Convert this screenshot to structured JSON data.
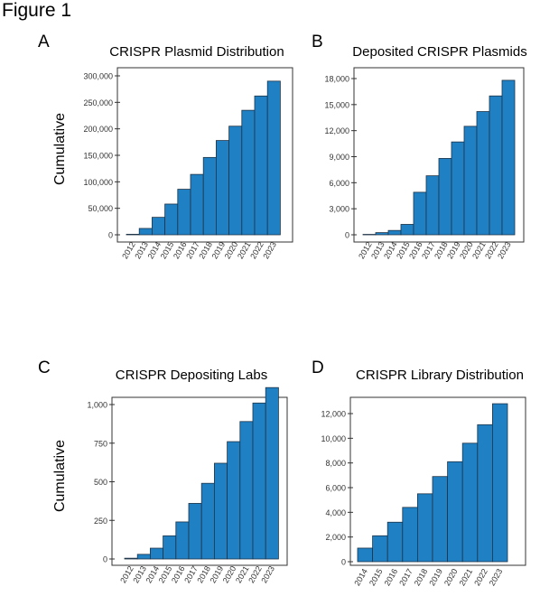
{
  "figure_title": "Figure 1",
  "panels": {
    "A": {
      "letter": "A",
      "title": "CRISPR Plasmid Distribution",
      "ylabel": "Cumulative"
    },
    "B": {
      "letter": "B",
      "title": "Deposited CRISPR Plasmids",
      "ylabel": ""
    },
    "C": {
      "letter": "C",
      "title": "CRISPR Depositing Labs",
      "ylabel": "Cumulative"
    },
    "D": {
      "letter": "D",
      "title": "CRISPR Library Distribution",
      "ylabel": ""
    }
  },
  "colors": {
    "bar": "#1f80c4",
    "bar_edge": "#1f3346",
    "axis": "#333333"
  },
  "chart_data": [
    {
      "panel": "A",
      "type": "bar",
      "title": "CRISPR Plasmid Distribution",
      "xlabel": "",
      "ylabel": "Cumulative",
      "categories": [
        "2012",
        "2013",
        "2014",
        "2015",
        "2016",
        "2017",
        "2018",
        "2019",
        "2020",
        "2021",
        "2022",
        "2023"
      ],
      "values": [
        1000,
        12000,
        33000,
        58000,
        86000,
        114000,
        146000,
        178000,
        205000,
        235000,
        262000,
        290000
      ],
      "ylim": [
        0,
        300000
      ],
      "yticks": [
        0,
        50000,
        100000,
        150000,
        200000,
        250000,
        300000
      ],
      "ytick_labels": [
        "0",
        "50,000",
        "100,000",
        "150,000",
        "200,000",
        "250,000",
        "300,000"
      ],
      "grid": false,
      "legend": "none"
    },
    {
      "panel": "B",
      "type": "bar",
      "title": "Deposited CRISPR Plasmids",
      "xlabel": "",
      "ylabel": "",
      "categories": [
        "2012",
        "2013",
        "2014",
        "2015",
        "2016",
        "2017",
        "2018",
        "2019",
        "2020",
        "2021",
        "2022",
        "2023"
      ],
      "values": [
        50,
        250,
        500,
        1200,
        4900,
        6800,
        8800,
        10700,
        12500,
        14200,
        16000,
        17800
      ],
      "ylim": [
        0,
        18000
      ],
      "yticks": [
        0,
        3000,
        6000,
        9000,
        12000,
        15000,
        18000
      ],
      "ytick_labels": [
        "0",
        "3,000",
        "6,000",
        "9,000",
        "12,000",
        "15,000",
        "18,000"
      ],
      "grid": false,
      "legend": "none"
    },
    {
      "panel": "C",
      "type": "bar",
      "title": "CRISPR Depositing Labs",
      "xlabel": "",
      "ylabel": "Cumulative",
      "categories": [
        "2012",
        "2013",
        "2014",
        "2015",
        "2016",
        "2017",
        "2018",
        "2019",
        "2020",
        "2021",
        "2022",
        "2023"
      ],
      "values": [
        5,
        30,
        70,
        150,
        240,
        360,
        490,
        620,
        760,
        890,
        1010,
        1110
      ],
      "ylim": [
        0,
        1100
      ],
      "yticks": [
        0,
        250,
        500,
        750,
        1000
      ],
      "ytick_labels": [
        "0",
        "250",
        "500",
        "750",
        "1,000"
      ],
      "grid": false,
      "legend": "none"
    },
    {
      "panel": "D",
      "type": "bar",
      "title": "CRISPR Library Distribution",
      "xlabel": "",
      "ylabel": "",
      "categories": [
        "2014",
        "2015",
        "2016",
        "2017",
        "2018",
        "2019",
        "2020",
        "2021",
        "2022",
        "2023"
      ],
      "values": [
        1100,
        2100,
        3200,
        4400,
        5500,
        6900,
        8100,
        9600,
        11100,
        12800
      ],
      "ylim": [
        0,
        12000
      ],
      "yticks": [
        0,
        2000,
        4000,
        6000,
        8000,
        10000,
        12000
      ],
      "ytick_labels": [
        "0",
        "2,000",
        "4,000",
        "6,000",
        "8,000",
        "10,000",
        "12,000"
      ],
      "grid": false,
      "legend": "none"
    }
  ]
}
